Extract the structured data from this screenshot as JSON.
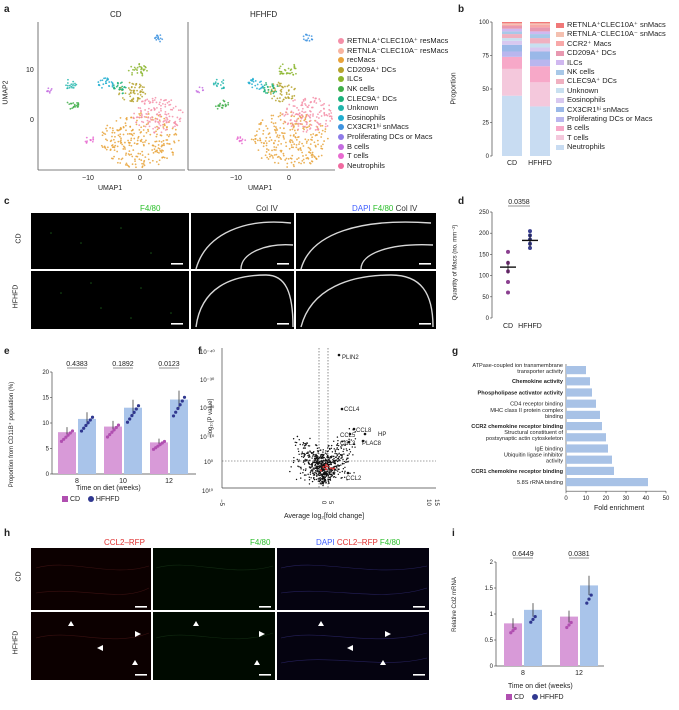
{
  "panels": {
    "a": {
      "letter": "a",
      "groups": [
        "CD",
        "HFHFD"
      ],
      "xlabel": "UMAP1",
      "ylabel": "UMAP2",
      "yticks": [
        "10",
        "0"
      ],
      "xticks": [
        "−10",
        "0"
      ],
      "legend": [
        {
          "label": "RETNLA⁺CLEC10A⁺ resMacs",
          "color": "#f48fa8"
        },
        {
          "label": "RETNLA⁻CLEC10A⁻ resMacs",
          "color": "#f8b4a0"
        },
        {
          "label": "recMacs",
          "color": "#e8a33a"
        },
        {
          "label": "CD209A⁺ DCs",
          "color": "#b5a22b"
        },
        {
          "label": "ILCs",
          "color": "#8ab52c"
        },
        {
          "label": "NK cells",
          "color": "#3fae49"
        },
        {
          "label": "CLEC9A⁺ DCs",
          "color": "#1bb17a"
        },
        {
          "label": "Unknown",
          "color": "#1fb5ab"
        },
        {
          "label": "Eosinophils",
          "color": "#20aed0"
        },
        {
          "label": "CX3CR1ʰⁱ snMacs",
          "color": "#3f94e0"
        },
        {
          "label": "Proliferating DCs or Macs",
          "color": "#8f7be8"
        },
        {
          "label": "B cells",
          "color": "#c46de0"
        },
        {
          "label": "T cells",
          "color": "#e86ad0"
        },
        {
          "label": "Neutrophils",
          "color": "#f06aa0"
        }
      ]
    },
    "b": {
      "letter": "b",
      "ylabel": "Proportion",
      "legend": [
        "RETNLA⁺CLEC10A⁺ snMacs",
        "RETNLA⁻CLEC10A⁻ snMacs",
        "CCR2⁺ Macs",
        "CD209A⁺ DCs",
        "ILCs",
        "NK cells",
        "CLEC9A⁺ DCs",
        "Unknown",
        "Eosinophils",
        "CX3CR1ʰⁱ snMacs",
        "Proliferating DCs or Macs",
        "B cells",
        "T cells",
        "Neutrophils"
      ]
    },
    "c": {
      "letter": "c",
      "col_titles": [
        "F4/80",
        "Col IV",
        "DAPI F4/80 Col IV"
      ],
      "row_labels": [
        "CD",
        "HFHFD"
      ]
    },
    "d": {
      "letter": "d",
      "ylabel": "Quantity of Macs (no. mm⁻²)",
      "pvalue": "0.0358"
    },
    "e": {
      "letter": "e",
      "ylabel": "Proportion from CD11B⁺ population (%)",
      "xlabel": "Time on diet (weeks)",
      "legend": [
        "CD",
        "HFHFD"
      ]
    },
    "f": {
      "letter": "f",
      "ylabel": "−log₁₀[P value]",
      "xlabel": "Average log₂[fold change]",
      "yticks": [
        "10⁻⁴⁰",
        "10⁻³⁰",
        "10⁻²⁰",
        "10⁻¹⁰",
        "10⁰",
        "10¹⁰"
      ],
      "xticks": [
        "−5",
        "0",
        "5",
        "10",
        "15"
      ],
      "genes": [
        "PLIN2",
        "CCL4",
        "CCL8",
        "HP",
        "CCL5",
        "CCL3",
        "PLAC8",
        "CCL2"
      ]
    },
    "g": {
      "letter": "g",
      "xlabel": "Fold enrichment",
      "xticks": [
        "0",
        "10",
        "20",
        "30",
        "40",
        "50"
      ]
    },
    "h": {
      "letter": "h",
      "col_titles": [
        "CCL2–RFP",
        "F4/80",
        "DAPI CCL2–RFP F4/80"
      ],
      "row_labels": [
        "CD",
        "HFHFD"
      ]
    },
    "i": {
      "letter": "i",
      "ylabel": "Relative Ccl2 mRNA",
      "xlabel": "Time on diet (weeks)",
      "legend": [
        "CD",
        "HFHFD"
      ]
    }
  },
  "chart_data": [
    {
      "panel": "b",
      "type": "bar",
      "stacked": true,
      "categories": [
        "CD",
        "HFHFD"
      ],
      "ylim": [
        0,
        100
      ],
      "yticks": [
        0,
        25,
        50,
        75,
        100
      ],
      "series": [
        {
          "name": "Neutrophils",
          "color": "#c8dcf2",
          "values": [
            45,
            37
          ]
        },
        {
          "name": "T cells",
          "color": "#f4c8dc",
          "values": [
            20,
            18
          ]
        },
        {
          "name": "B cells",
          "color": "#f7a8c8",
          "values": [
            9,
            12
          ]
        },
        {
          "name": "Proliferating DCs or Macs",
          "color": "#b9b6ee",
          "values": [
            4,
            5
          ]
        },
        {
          "name": "CX3CR1ʰⁱ snMacs",
          "color": "#9ab8e8",
          "values": [
            5,
            6
          ]
        },
        {
          "name": "Eosinophils",
          "color": "#d8c8f0",
          "values": [
            3,
            3
          ]
        },
        {
          "name": "Unknown",
          "color": "#c8e0f0",
          "values": [
            2,
            3
          ]
        },
        {
          "name": "CLEC9A⁺ DCs",
          "color": "#f0b0c0",
          "values": [
            3,
            4
          ]
        },
        {
          "name": "NK cells",
          "color": "#a8c8e8",
          "values": [
            2,
            3
          ]
        },
        {
          "name": "ILCs",
          "color": "#d0b8f0",
          "values": [
            2,
            2
          ]
        },
        {
          "name": "CD209A⁺ DCs",
          "color": "#e898b0",
          "values": [
            2,
            3
          ]
        },
        {
          "name": "CCR2⁺ Macs",
          "color": "#f8a8a8",
          "values": [
            1,
            2
          ]
        },
        {
          "name": "RETNLA⁻CLEC10A⁻ snMacs",
          "color": "#f4c0b0",
          "values": [
            1,
            1
          ]
        },
        {
          "name": "RETNLA⁺CLEC10A⁺ snMacs",
          "color": "#f07878",
          "values": [
            1,
            1
          ]
        }
      ]
    },
    {
      "panel": "d",
      "type": "scatter",
      "categories": [
        "CD",
        "HFHFD"
      ],
      "ylim": [
        0,
        250
      ],
      "yticks": [
        0,
        50,
        100,
        150,
        200,
        250
      ],
      "means": [
        120,
        183
      ],
      "points": [
        [
          156,
          130,
          110,
          85,
          60
        ],
        [
          205,
          195,
          185,
          175,
          165
        ]
      ],
      "colors": [
        "#8a3f8f",
        "#3a3f8f"
      ]
    },
    {
      "panel": "e",
      "type": "bar",
      "categories": [
        "8",
        "10",
        "12"
      ],
      "ylim": [
        0,
        20
      ],
      "yticks": [
        0,
        5,
        10,
        15,
        20
      ],
      "pvalues": [
        "0.4383",
        "0.1892",
        "0.0123"
      ],
      "series": [
        {
          "name": "CD",
          "color": "#d89ad8",
          "values": [
            8.2,
            9.3,
            6.2
          ]
        },
        {
          "name": "HFHFD",
          "color": "#a9c4ea",
          "values": [
            10.8,
            13.0,
            14.6
          ]
        }
      ]
    },
    {
      "panel": "g",
      "type": "bar",
      "orientation": "horizontal",
      "xlim": [
        0,
        50
      ],
      "categories": [
        "ATPase-coupled ion transmembrane transporter activity",
        "Chemokine activity",
        "Phospholipase activator activity",
        "CD4 receptor binding",
        "MHC class II protein complex binding",
        "CCR2 chemokine receptor binding",
        "Structural constituent of postsynaptic actin cytoskeleton",
        "IgE binding",
        "Ubiquitin ligase inhibitor activity",
        "CCR1 chemokine receptor binding",
        "5.8S rRNA binding"
      ],
      "bold": [
        false,
        true,
        true,
        false,
        false,
        true,
        false,
        false,
        false,
        true,
        false
      ],
      "values": [
        10,
        12,
        13,
        15,
        17,
        18,
        20,
        21,
        23,
        24,
        41
      ]
    },
    {
      "panel": "i",
      "type": "bar",
      "categories": [
        "8",
        "12"
      ],
      "ylim": [
        0,
        2.0
      ],
      "yticks": [
        0,
        0.5,
        1.0,
        1.5,
        2.0
      ],
      "pvalues": [
        "0.6449",
        "0.0381"
      ],
      "series": [
        {
          "name": "CD",
          "color": "#d89ad8",
          "values": [
            0.82,
            0.95
          ]
        },
        {
          "name": "HFHFD",
          "color": "#a9c4ea",
          "values": [
            1.08,
            1.55
          ]
        }
      ]
    }
  ]
}
